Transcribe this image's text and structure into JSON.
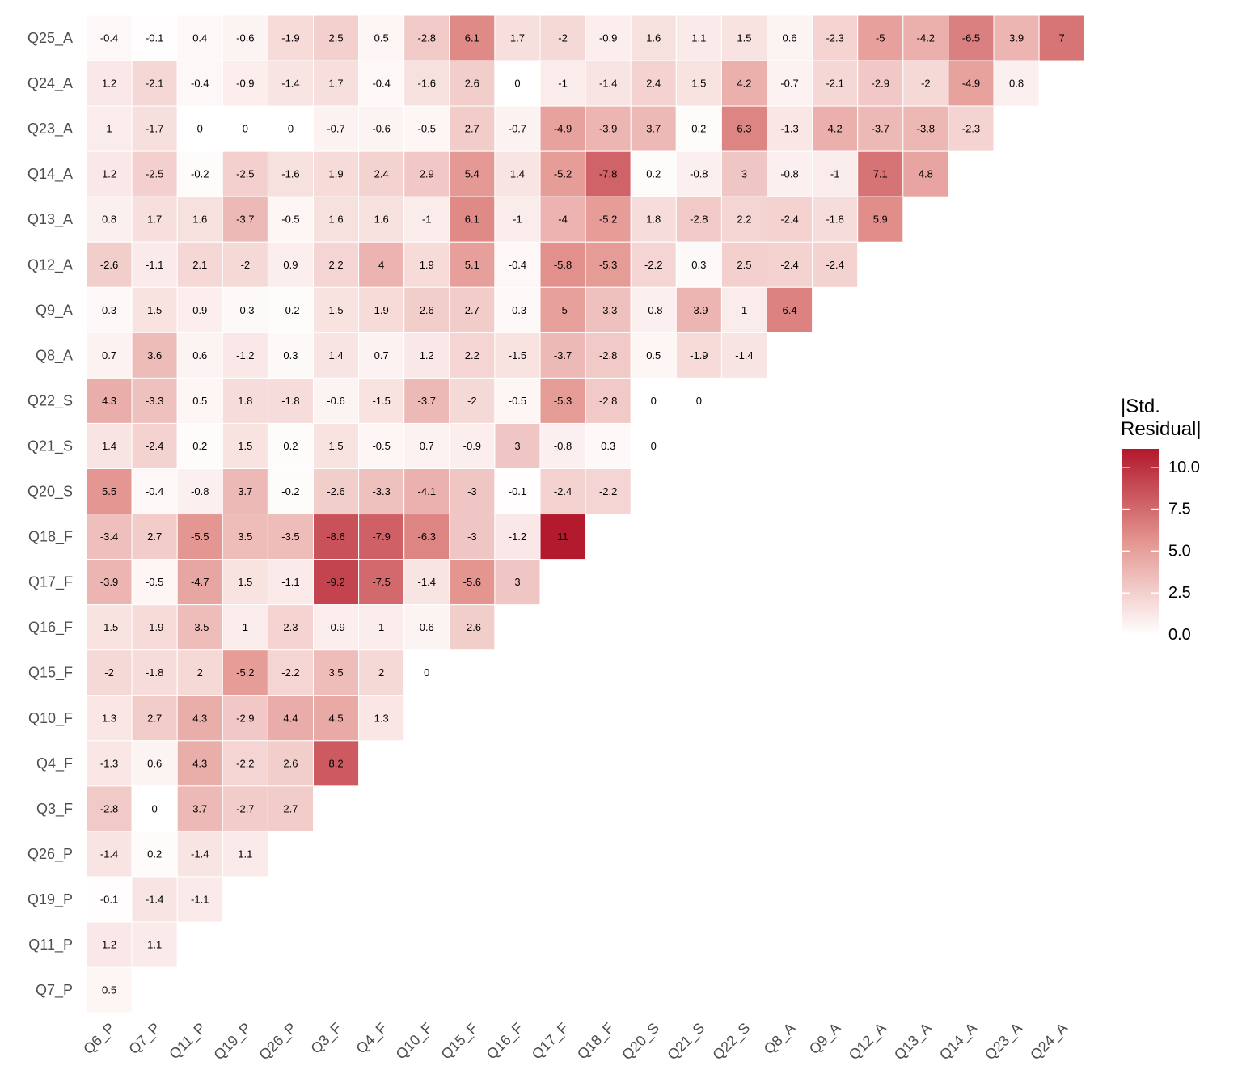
{
  "chart_data": {
    "type": "heatmap",
    "title": "",
    "legend": {
      "title_lines": [
        "|Std.",
        "Residual|"
      ],
      "ticks": [
        "10.0",
        "7.5",
        "5.0",
        "2.5",
        "0.0"
      ],
      "tick_values": [
        10,
        7.5,
        5,
        2.5,
        0
      ],
      "range": [
        0,
        11.1
      ],
      "placement": "right"
    },
    "color_low": "#FFFFFF",
    "color_mid": "#E49691",
    "color_high": "#B2182B",
    "x_categories": [
      "Q6_P",
      "Q7_P",
      "Q11_P",
      "Q19_P",
      "Q26_P",
      "Q3_F",
      "Q4_F",
      "Q10_F",
      "Q15_F",
      "Q16_F",
      "Q17_F",
      "Q18_F",
      "Q20_S",
      "Q21_S",
      "Q22_S",
      "Q8_A",
      "Q9_A",
      "Q12_A",
      "Q13_A",
      "Q14_A",
      "Q23_A",
      "Q24_A"
    ],
    "y_categories": [
      "Q25_A",
      "Q24_A",
      "Q23_A",
      "Q14_A",
      "Q13_A",
      "Q12_A",
      "Q9_A",
      "Q8_A",
      "Q22_S",
      "Q21_S",
      "Q20_S",
      "Q18_F",
      "Q17_F",
      "Q16_F",
      "Q15_F",
      "Q10_F",
      "Q4_F",
      "Q3_F",
      "Q26_P",
      "Q19_P",
      "Q11_P",
      "Q7_P"
    ],
    "values": [
      [
        -0.4,
        -0.1,
        0.4,
        -0.6,
        -1.9,
        2.5,
        0.5,
        -2.8,
        6.1,
        1.7,
        -2,
        -0.9,
        1.6,
        1.1,
        1.5,
        0.6,
        -2.3,
        -5,
        -4.2,
        -6.5,
        3.9,
        7
      ],
      [
        1.2,
        -2.1,
        -0.4,
        -0.9,
        -1.4,
        1.7,
        -0.4,
        -1.6,
        2.6,
        0,
        -1,
        -1.4,
        2.4,
        1.5,
        4.2,
        -0.7,
        -2.1,
        -2.9,
        -2,
        -4.9,
        0.8
      ],
      [
        1,
        -1.7,
        0,
        0,
        0,
        -0.7,
        -0.6,
        -0.5,
        2.7,
        -0.7,
        -4.9,
        -3.9,
        3.7,
        0.2,
        6.3,
        -1.3,
        4.2,
        -3.7,
        -3.8,
        -2.3
      ],
      [
        1.2,
        -2.5,
        -0.2,
        -2.5,
        -1.6,
        1.9,
        2.4,
        2.9,
        5.4,
        1.4,
        -5.2,
        -7.8,
        0.2,
        -0.8,
        3,
        -0.8,
        -1,
        7.1,
        4.8
      ],
      [
        0.8,
        1.7,
        1.6,
        -3.7,
        -0.5,
        1.6,
        1.6,
        -1,
        6.1,
        -1,
        -4,
        -5.2,
        1.8,
        -2.8,
        2.2,
        -2.4,
        -1.8,
        5.9
      ],
      [
        -2.6,
        -1.1,
        2.1,
        -2,
        0.9,
        2.2,
        4,
        1.9,
        5.1,
        -0.4,
        -5.8,
        -5.3,
        -2.2,
        0.3,
        2.5,
        -2.4,
        -2.4
      ],
      [
        0.3,
        1.5,
        0.9,
        -0.3,
        -0.2,
        1.5,
        1.9,
        2.6,
        2.7,
        -0.3,
        -5,
        -3.3,
        -0.8,
        -3.9,
        1,
        6.4
      ],
      [
        0.7,
        3.6,
        0.6,
        -1.2,
        0.3,
        1.4,
        0.7,
        1.2,
        2.2,
        -1.5,
        -3.7,
        -2.8,
        0.5,
        -1.9,
        -1.4
      ],
      [
        4.3,
        -3.3,
        0.5,
        1.8,
        -1.8,
        -0.6,
        -1.5,
        -3.7,
        -2,
        -0.5,
        -5.3,
        -2.8,
        0,
        0
      ],
      [
        1.4,
        -2.4,
        0.2,
        1.5,
        0.2,
        1.5,
        -0.5,
        0.7,
        -0.9,
        3,
        -0.8,
        0.3,
        0
      ],
      [
        5.5,
        -0.4,
        -0.8,
        3.7,
        -0.2,
        -2.6,
        -3.3,
        -4.1,
        -3,
        -0.1,
        -2.4,
        -2.2
      ],
      [
        -3.4,
        2.7,
        -5.5,
        3.5,
        -3.5,
        -8.6,
        -7.9,
        -6.3,
        -3,
        -1.2,
        11
      ],
      [
        -3.9,
        -0.5,
        -4.7,
        1.5,
        -1.1,
        -9.2,
        -7.5,
        -1.4,
        -5.6,
        3
      ],
      [
        -1.5,
        -1.9,
        -3.5,
        1,
        2.3,
        -0.9,
        1,
        0.6,
        -2.6
      ],
      [
        -2,
        -1.8,
        2,
        -5.2,
        -2.2,
        3.5,
        2,
        0
      ],
      [
        1.3,
        2.7,
        4.3,
        -2.9,
        4.4,
        4.5,
        1.3
      ],
      [
        -1.3,
        0.6,
        4.3,
        -2.2,
        2.6,
        8.2
      ],
      [
        -2.8,
        0,
        3.7,
        -2.7,
        2.7
      ],
      [
        -1.4,
        0.2,
        -1.4,
        1.1
      ],
      [
        -0.1,
        -1.4,
        -1.1
      ],
      [
        1.2,
        1.1
      ],
      [
        0.5
      ]
    ]
  }
}
